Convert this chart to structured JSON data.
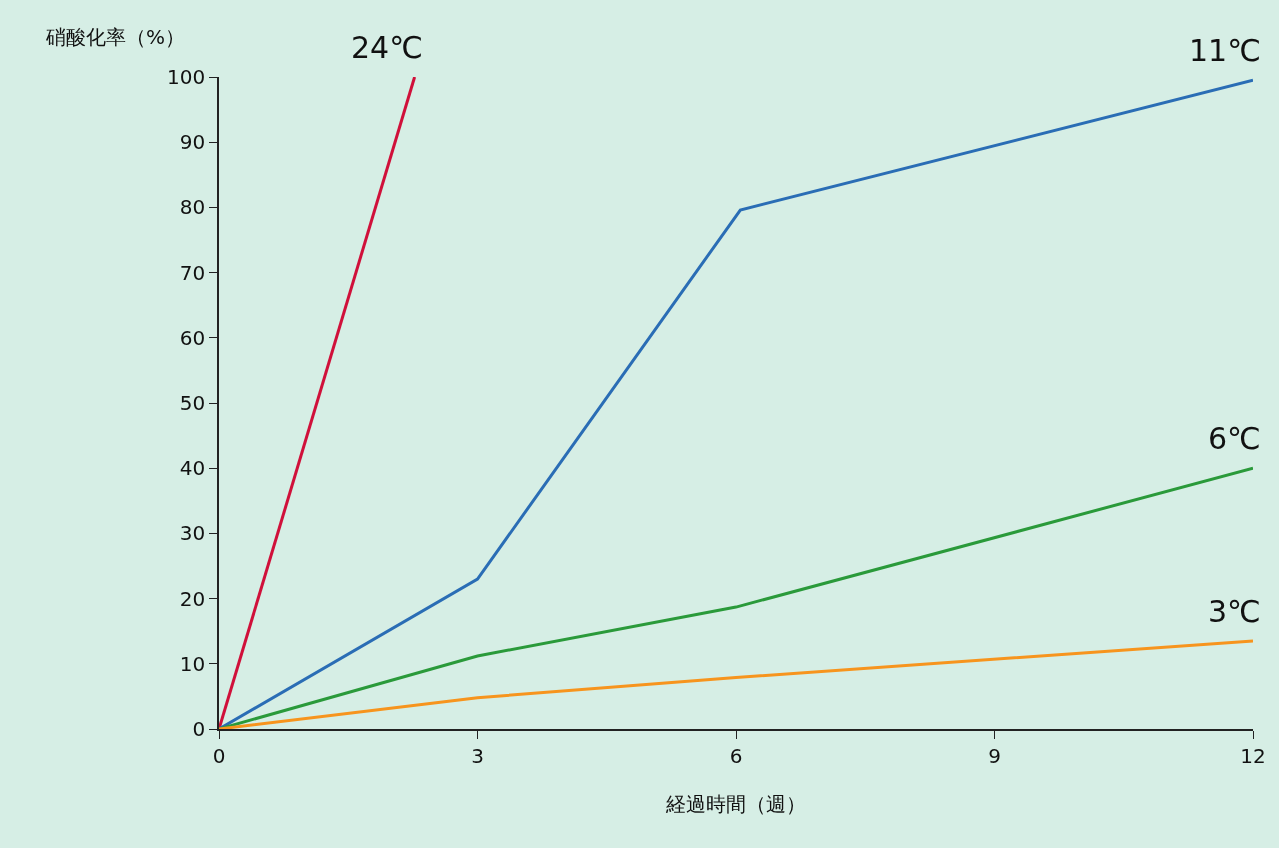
{
  "chart_data": {
    "type": "line",
    "xlabel": "経過時間（週）",
    "ylabel": "硝酸化率（%）",
    "xlim": [
      0,
      12
    ],
    "xticks": [
      0,
      3,
      6,
      9,
      12
    ],
    "ylim": [
      0,
      100
    ],
    "yticks": [
      0,
      10,
      20,
      30,
      40,
      50,
      60,
      70,
      80,
      90,
      100
    ],
    "grid": false,
    "legend": false,
    "marker": "none",
    "line_style": "solid",
    "series": [
      {
        "name": "24℃",
        "color": "#d0103a",
        "x": [
          0,
          2.27
        ],
        "values": [
          0,
          100
        ]
      },
      {
        "name": "11℃",
        "color": "#2a6db5",
        "x": [
          0,
          3,
          6.05,
          12
        ],
        "values": [
          0,
          23,
          79.6,
          99.5
        ]
      },
      {
        "name": "6℃",
        "color": "#2a9a3a",
        "x": [
          0,
          3,
          6,
          12
        ],
        "values": [
          0,
          11.2,
          18.7,
          40
        ]
      },
      {
        "name": "3℃",
        "color": "#f7941d",
        "x": [
          0,
          3,
          6,
          12
        ],
        "values": [
          0,
          4.8,
          7.9,
          13.5
        ]
      }
    ]
  }
}
